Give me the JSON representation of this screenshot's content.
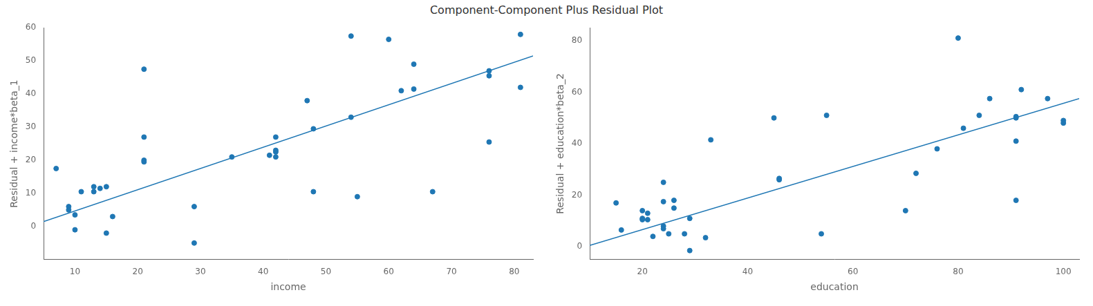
{
  "title": "Component-Component Plus Residual Plot",
  "chart_data": [
    {
      "type": "scatter",
      "xlabel": "income",
      "ylabel": "Residual + income*beta_1",
      "series": [
        {
          "type": "scatter",
          "color": "#1f77b4",
          "x": [
            7,
            9,
            9,
            10,
            10,
            11,
            13,
            13,
            14,
            15,
            15,
            16,
            21,
            21,
            21,
            21,
            29,
            29,
            35,
            41,
            42,
            42,
            42,
            42,
            47,
            48,
            48,
            54,
            54,
            55,
            60,
            62,
            64,
            64,
            67,
            76,
            76,
            76,
            81,
            81
          ],
          "values": [
            17.5,
            6.0,
            5.0,
            3.5,
            -1.0,
            10.5,
            10.5,
            12.0,
            11.5,
            12.0,
            -2.0,
            3.0,
            47.5,
            27.0,
            20.0,
            19.5,
            6.0,
            -5.0,
            21.0,
            21.5,
            27.0,
            22.5,
            23.0,
            21.0,
            38.0,
            29.5,
            10.5,
            57.5,
            33.0,
            9.0,
            56.5,
            41.0,
            49.0,
            41.5,
            10.5,
            47.0,
            45.5,
            25.5,
            42.0,
            58.0
          ]
        },
        {
          "type": "line",
          "color": "#1f77b4",
          "x": [
            5,
            83
          ],
          "values": [
            1.5,
            51.5
          ]
        }
      ],
      "xlim": [
        5,
        83
      ],
      "ylim": [
        -10,
        60
      ],
      "xticks": [
        10,
        20,
        30,
        40,
        50,
        60,
        70,
        80
      ],
      "yticks": [
        0,
        10,
        20,
        30,
        40,
        50,
        60
      ],
      "grid": false
    },
    {
      "type": "scatter",
      "xlabel": "education",
      "ylabel": "Residual + education*beta_2",
      "series": [
        {
          "type": "scatter",
          "color": "#1f77b4",
          "x": [
            15,
            16,
            20,
            20,
            20,
            21,
            21,
            22,
            24,
            24,
            24,
            24,
            25,
            26,
            26,
            28,
            29,
            29,
            32,
            33,
            45,
            46,
            46,
            54,
            55,
            70,
            72,
            76,
            80,
            81,
            84,
            86,
            91,
            91,
            91,
            91,
            92,
            97,
            100,
            100
          ],
          "values": [
            17.0,
            6.5,
            11.0,
            10.5,
            14.0,
            10.5,
            13.0,
            4.0,
            17.5,
            25.0,
            8.0,
            7.0,
            5.0,
            18.0,
            15.0,
            5.0,
            11.0,
            -1.5,
            3.5,
            41.5,
            50.0,
            26.0,
            26.5,
            5.0,
            51.0,
            14.0,
            28.5,
            38.0,
            81.0,
            46.0,
            51.0,
            57.5,
            50.0,
            50.5,
            18.0,
            41.0,
            61.0,
            57.5,
            49.0,
            48.0
          ]
        },
        {
          "type": "line",
          "color": "#1f77b4",
          "x": [
            10,
            103
          ],
          "values": [
            0.5,
            57.5
          ]
        }
      ],
      "xlim": [
        10,
        103
      ],
      "ylim": [
        -5,
        85
      ],
      "xticks": [
        20,
        40,
        60,
        80,
        100
      ],
      "yticks": [
        0,
        20,
        40,
        60,
        80
      ],
      "grid": false
    }
  ]
}
